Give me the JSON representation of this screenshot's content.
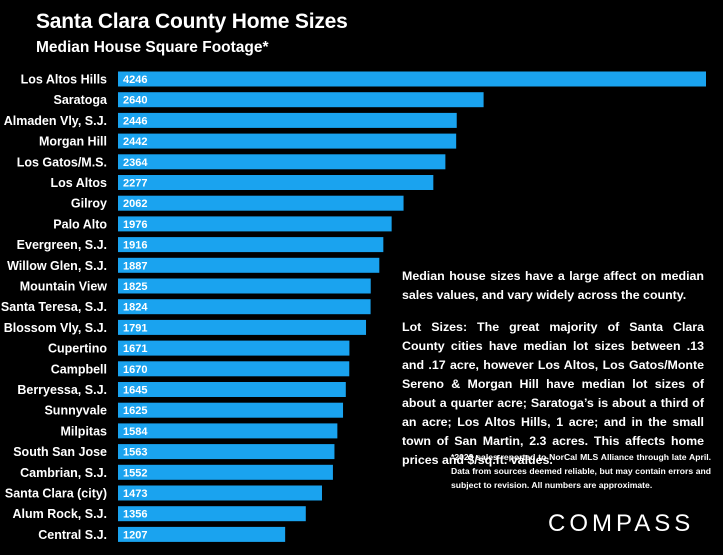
{
  "chart_data": {
    "type": "bar",
    "orientation": "horizontal",
    "title": "Santa Clara County Home Sizes",
    "subtitle": "Median House Square Footage*",
    "categories": [
      "Los Altos Hills",
      "Saratoga",
      "Almaden Vly, S.J.",
      "Morgan Hill",
      "Los Gatos/M.S.",
      "Los Altos",
      "Gilroy",
      "Palo Alto",
      "Evergreen, S.J.",
      "Willow Glen, S.J.",
      "Mountain View",
      "Santa Teresa, S.J.",
      "Blossom Vly, S.J.",
      "Cupertino",
      "Campbell",
      "Berryessa, S.J.",
      "Sunnyvale",
      "Milpitas",
      "South San Jose",
      "Cambrian, S.J.",
      "Santa Clara (city)",
      "Alum Rock, S.J.",
      "Central S.J."
    ],
    "values": [
      4246,
      2640,
      2446,
      2442,
      2364,
      2277,
      2062,
      1976,
      1916,
      1887,
      1825,
      1824,
      1791,
      1671,
      1670,
      1645,
      1625,
      1584,
      1563,
      1552,
      1473,
      1356,
      1207
    ],
    "xlim": [
      0,
      4246
    ],
    "data_labels": "inside-start",
    "grid": false,
    "bar_color": "#1aa3ef"
  },
  "notes": {
    "paragraph1": "Median house sizes have a large affect on median sales values, and vary widely across the county.",
    "paragraph2": "Lot Sizes: The great majority of Santa Clara County cities have median lot sizes between .13 and .17 acre, however Los Altos, Los Gatos/Monte Sereno & Morgan Hill have median lot sizes of about a quarter acre; Saratoga’s is about a third of an acre; Los Altos Hills, 1 acre; and in the small town of San Martin, 2.3 acres. This affects home prices and $/sq.ft. values.",
    "footnote": "*2023 sales reported to NorCal MLS Alliance through late April. Data from sources deemed reliable, but may contain errors and subject to revision. All numbers are approximate."
  },
  "brand": {
    "logo_text": "COMPASS"
  },
  "colors": {
    "background": "#000000",
    "text": "#ffffff",
    "bar": "#1aa3ef"
  }
}
